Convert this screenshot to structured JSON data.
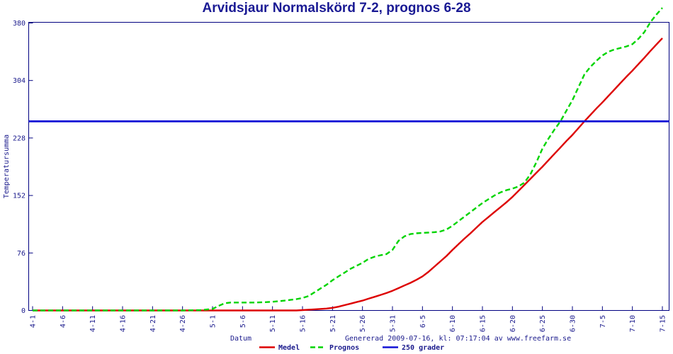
{
  "title": "Arvidsjaur Normalskörd 7-2, prognos 6-28",
  "footer": "Genererad 2009-07-16, kl: 07:17:04 av www.freefarm.se",
  "colors": {
    "navy_text": "#1a1a8c",
    "axis": "#000080",
    "medel": "#dd0000",
    "prognos": "#00d400",
    "reference": "#1212d6",
    "background": "#ffffff"
  },
  "chart_data": {
    "type": "line",
    "title": "Arvidsjaur Normalskörd 7-2, prognos 6-28",
    "xlabel": "Datum",
    "ylabel": "Temperatursumma",
    "ylim": [
      0,
      380
    ],
    "y_ticks": [
      0,
      76,
      152,
      228,
      304,
      380
    ],
    "x_ticks": [
      "4-1",
      "4-6",
      "4-11",
      "4-16",
      "4-21",
      "4-26",
      "5-1",
      "5-6",
      "5-11",
      "5-16",
      "5-21",
      "5-26",
      "5-31",
      "6-5",
      "6-10",
      "6-15",
      "6-20",
      "6-25",
      "6-30",
      "7-5",
      "7-10",
      "7-15"
    ],
    "grid": false,
    "legend_position": "bottom",
    "legend": [
      {
        "label": "Medel",
        "color": "#dd0000",
        "style": "solid"
      },
      {
        "label": "Prognos",
        "color": "#00d400",
        "style": "dashed"
      },
      {
        "label": "250 grader",
        "color": "#1212d6",
        "style": "solid"
      }
    ],
    "reference_line": {
      "label": "250 grader",
      "value": 250,
      "color": "#1212d6"
    },
    "series": [
      {
        "name": "Medel",
        "color": "#dd0000",
        "style": "solid",
        "points": [
          [
            "4-1",
            0
          ],
          [
            "4-11",
            0
          ],
          [
            "4-21",
            0
          ],
          [
            "5-1",
            0
          ],
          [
            "5-11",
            0
          ],
          [
            "5-15",
            0
          ],
          [
            "5-16",
            0.5
          ],
          [
            "5-18",
            1.5
          ],
          [
            "5-20",
            2.5
          ],
          [
            "5-21",
            3.5
          ],
          [
            "5-22",
            5
          ],
          [
            "5-23",
            7
          ],
          [
            "5-24",
            9
          ],
          [
            "5-25",
            11
          ],
          [
            "5-26",
            13
          ],
          [
            "5-27",
            15.5
          ],
          [
            "5-28",
            18
          ],
          [
            "5-29",
            20.5
          ],
          [
            "5-30",
            23
          ],
          [
            "5-31",
            26
          ],
          [
            "6-1",
            29.5
          ],
          [
            "6-2",
            33
          ],
          [
            "6-3",
            36.5
          ],
          [
            "6-4",
            40.5
          ],
          [
            "6-5",
            45
          ],
          [
            "6-6",
            51
          ],
          [
            "6-7",
            58
          ],
          [
            "6-8",
            65
          ],
          [
            "6-9",
            72
          ],
          [
            "6-10",
            80
          ],
          [
            "6-11",
            87.5
          ],
          [
            "6-12",
            95
          ],
          [
            "6-13",
            102
          ],
          [
            "6-14",
            109.5
          ],
          [
            "6-15",
            117
          ],
          [
            "6-16",
            123.5
          ],
          [
            "6-17",
            130
          ],
          [
            "6-18",
            136.5
          ],
          [
            "6-19",
            143
          ],
          [
            "6-20",
            150
          ],
          [
            "6-21",
            158
          ],
          [
            "6-22",
            166
          ],
          [
            "6-23",
            174
          ],
          [
            "6-24",
            182
          ],
          [
            "6-25",
            190
          ],
          [
            "6-26",
            198.5
          ],
          [
            "6-27",
            207
          ],
          [
            "6-28",
            215.5
          ],
          [
            "6-29",
            224
          ],
          [
            "6-30",
            232
          ],
          [
            "7-1",
            241
          ],
          [
            "7-2",
            250
          ],
          [
            "7-3",
            258.5
          ],
          [
            "7-4",
            267
          ],
          [
            "7-5",
            275
          ],
          [
            "7-6",
            283.5
          ],
          [
            "7-7",
            292
          ],
          [
            "7-8",
            300.5
          ],
          [
            "7-9",
            309
          ],
          [
            "7-10",
            317
          ],
          [
            "7-11",
            325.5
          ],
          [
            "7-12",
            334
          ],
          [
            "7-13",
            343
          ],
          [
            "7-14",
            351.5
          ],
          [
            "7-15",
            360
          ]
        ]
      },
      {
        "name": "Prognos",
        "color": "#00d400",
        "style": "dashed",
        "points": [
          [
            "4-1",
            0
          ],
          [
            "4-6",
            0
          ],
          [
            "4-11",
            0
          ],
          [
            "4-16",
            0
          ],
          [
            "4-21",
            0
          ],
          [
            "4-26",
            0
          ],
          [
            "4-29",
            0.5
          ],
          [
            "5-1",
            2
          ],
          [
            "5-2",
            6
          ],
          [
            "5-3",
            9.5
          ],
          [
            "5-4",
            10.5
          ],
          [
            "5-6",
            10.5
          ],
          [
            "5-8",
            10.5
          ],
          [
            "5-10",
            11
          ],
          [
            "5-11",
            11.5
          ],
          [
            "5-13",
            13
          ],
          [
            "5-15",
            15
          ],
          [
            "5-16",
            16.5
          ],
          [
            "5-17",
            19
          ],
          [
            "5-18",
            24
          ],
          [
            "5-19",
            29
          ],
          [
            "5-20",
            34
          ],
          [
            "5-21",
            40
          ],
          [
            "5-22",
            45
          ],
          [
            "5-23",
            50
          ],
          [
            "5-24",
            55
          ],
          [
            "5-25",
            59
          ],
          [
            "5-26",
            63
          ],
          [
            "5-27",
            68
          ],
          [
            "5-28",
            71
          ],
          [
            "5-29",
            73
          ],
          [
            "5-30",
            74.5
          ],
          [
            "5-31",
            80
          ],
          [
            "6-1",
            92
          ],
          [
            "6-2",
            98
          ],
          [
            "6-3",
            101
          ],
          [
            "6-4",
            102
          ],
          [
            "6-5",
            102.5
          ],
          [
            "6-6",
            103
          ],
          [
            "6-7",
            103.5
          ],
          [
            "6-8",
            104.5
          ],
          [
            "6-9",
            107
          ],
          [
            "6-10",
            112
          ],
          [
            "6-11",
            118
          ],
          [
            "6-12",
            124
          ],
          [
            "6-13",
            130
          ],
          [
            "6-14",
            136
          ],
          [
            "6-15",
            142
          ],
          [
            "6-16",
            147
          ],
          [
            "6-17",
            152
          ],
          [
            "6-18",
            156
          ],
          [
            "6-19",
            159
          ],
          [
            "6-20",
            161
          ],
          [
            "6-21",
            164
          ],
          [
            "6-22",
            169
          ],
          [
            "6-23",
            180
          ],
          [
            "6-24",
            196
          ],
          [
            "6-25",
            214
          ],
          [
            "6-26",
            227
          ],
          [
            "6-27",
            239
          ],
          [
            "6-28",
            250
          ],
          [
            "6-29",
            264
          ],
          [
            "6-30",
            278
          ],
          [
            "7-1",
            295
          ],
          [
            "7-2",
            312
          ],
          [
            "7-3",
            322
          ],
          [
            "7-4",
            330
          ],
          [
            "7-5",
            337
          ],
          [
            "7-6",
            342
          ],
          [
            "7-7",
            345
          ],
          [
            "7-8",
            347
          ],
          [
            "7-9",
            349
          ],
          [
            "7-10",
            352
          ],
          [
            "7-11",
            359
          ],
          [
            "7-12",
            368
          ],
          [
            "7-13",
            381
          ],
          [
            "7-14",
            391
          ],
          [
            "7-15",
            400
          ]
        ]
      }
    ]
  }
}
